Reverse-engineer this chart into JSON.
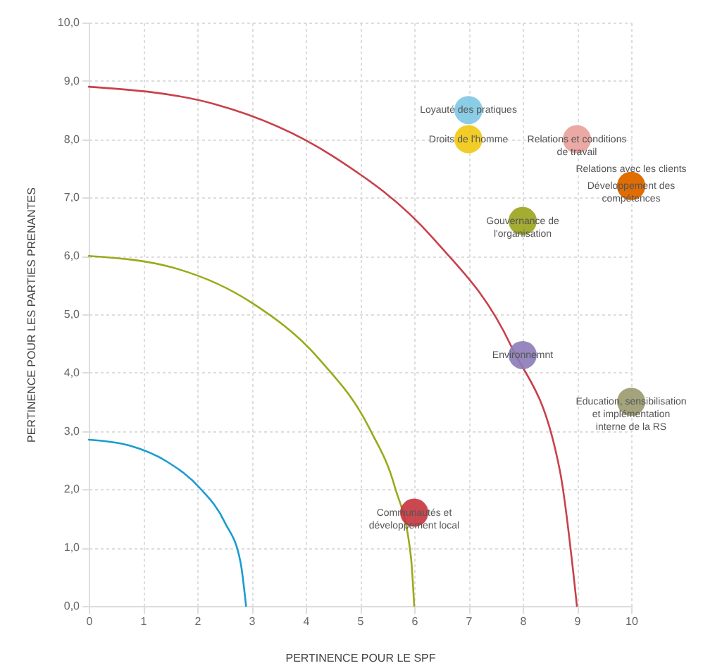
{
  "chart_data": {
    "type": "scatter",
    "xlabel": "PERTINENCE POUR LE SPF",
    "ylabel": "PERTINENCE POUR LES PARTIES PRENANTES",
    "xlim": [
      0,
      10
    ],
    "xticks": [
      0,
      1,
      2,
      3,
      4,
      5,
      6,
      7,
      8,
      9,
      10
    ],
    "ylim": [
      0,
      10
    ],
    "yticks": [
      {
        "value": 0,
        "label": "0,0"
      },
      {
        "value": 1,
        "label": "1,0"
      },
      {
        "value": 2,
        "label": "2,0"
      },
      {
        "value": 3,
        "label": "3,0"
      },
      {
        "value": 4,
        "label": "4,0"
      },
      {
        "value": 5,
        "label": "5,0"
      },
      {
        "value": 6,
        "label": "6,0"
      },
      {
        "value": 7,
        "label": "7,0"
      },
      {
        "value": 8,
        "label": "8,0"
      },
      {
        "value": 9,
        "label": "9,0"
      },
      {
        "value": 10,
        "label": "10,0"
      }
    ],
    "grid": true,
    "marker": "circle",
    "series": [
      {
        "type": "line",
        "marker": "none",
        "color": "#c8414b",
        "x": [
          0,
          2.33,
          4.5,
          6.36,
          7.79,
          8.69,
          9
        ],
        "values": [
          8.9,
          8.6,
          7.71,
          6.29,
          4.45,
          2.3,
          0
        ]
      },
      {
        "type": "line",
        "marker": "none",
        "color": "#9aaa1a",
        "x": [
          0,
          1.55,
          3,
          4.24,
          5.2,
          5.64,
          5.94,
          6
        ],
        "values": [
          6,
          5.8,
          5.2,
          4.24,
          3,
          2.05,
          0.84,
          0
        ]
      },
      {
        "type": "line",
        "marker": "none",
        "color": "#1a9cd0",
        "x": [
          0,
          0.75,
          1.45,
          2.05,
          2.51,
          2.8,
          2.9
        ],
        "values": [
          2.85,
          2.75,
          2.47,
          2.02,
          1.43,
          0.74,
          0
        ]
      },
      {
        "name": "Loyauté des pratiques",
        "color": "#7ec8e3",
        "x": [
          7
        ],
        "values": [
          8.5
        ]
      },
      {
        "name": "Droits de l'homme",
        "color": "#f2c80f",
        "x": [
          7
        ],
        "values": [
          8.0
        ]
      },
      {
        "name": "Relations et conditions\nde travail",
        "color": "#e8a09a",
        "x": [
          9
        ],
        "values": [
          8.0
        ]
      },
      {
        "name": "Relations avec les clients",
        "color": "#e06c00",
        "x": [
          10
        ],
        "values": [
          7.2
        ]
      },
      {
        "name": "Développement des\ncompétences",
        "color": "#e06c00",
        "x": [
          10
        ],
        "values": [
          7.2
        ]
      },
      {
        "name": "Gouvernance de\nl'organisation",
        "color": "#9aa31c",
        "x": [
          8
        ],
        "values": [
          6.6
        ]
      },
      {
        "name": "Environnemnt",
        "color": "#8b7bb8",
        "x": [
          8
        ],
        "values": [
          4.3
        ]
      },
      {
        "name": "Education, sensibilisation\net implémentation\ninterne de la RS",
        "color": "#999a6e",
        "x": [
          10
        ],
        "values": [
          3.5
        ]
      },
      {
        "name": "Communautés et\ndéveloppement local",
        "color": "#c7343d",
        "x": [
          6
        ],
        "values": [
          1.6
        ]
      }
    ]
  }
}
